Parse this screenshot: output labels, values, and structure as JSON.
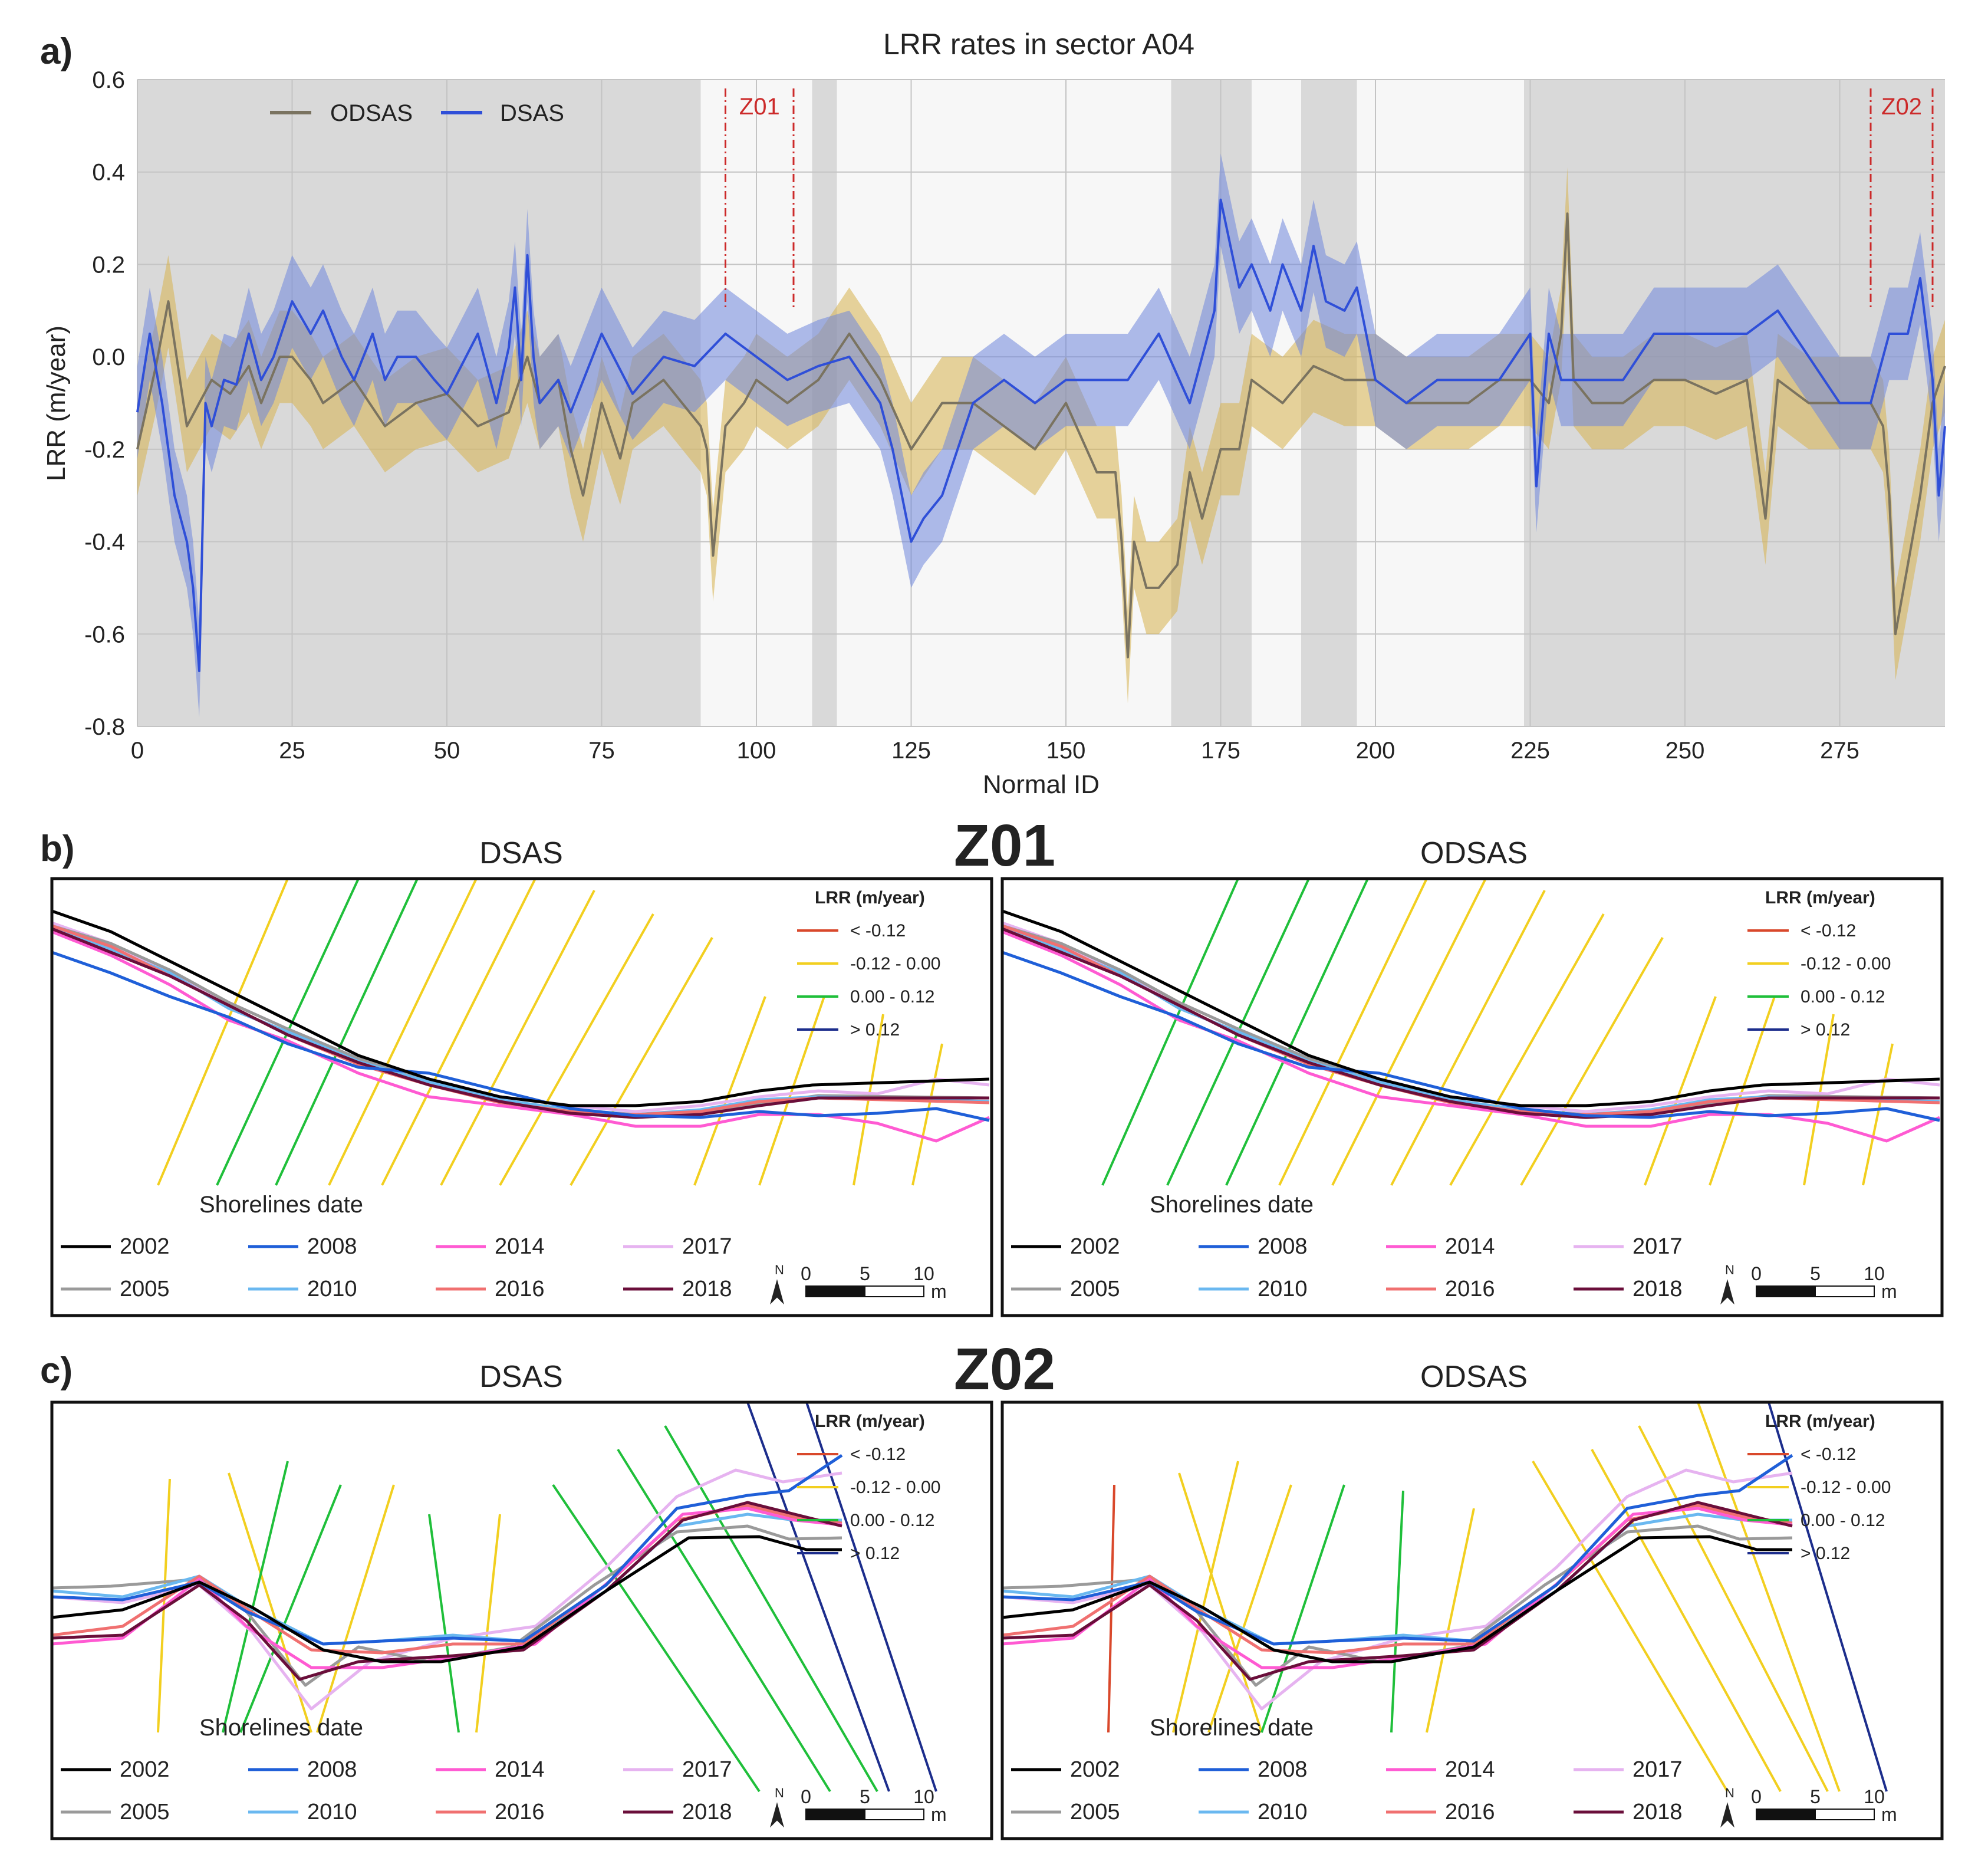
{
  "panel_a": {
    "label": "a)",
    "chart_data": {
      "type": "line",
      "title": "LRR rates in sector A04",
      "xlabel": "Normal ID",
      "ylabel": "LRR (m/year)",
      "xlim": [
        0,
        292
      ],
      "ylim": [
        -0.8,
        0.6
      ],
      "x_ticks": [
        0,
        25,
        50,
        75,
        100,
        125,
        150,
        175,
        200,
        225,
        250,
        275
      ],
      "y_ticks": [
        -0.8,
        -0.6,
        -0.4,
        -0.2,
        0.0,
        0.2,
        0.4,
        0.6
      ],
      "x_tick_labels": [
        "0",
        "25",
        "50",
        "75",
        "100",
        "125",
        "150",
        "175",
        "200",
        "225",
        "250",
        "275"
      ],
      "y_tick_labels": [
        "-0.8",
        "-0.6",
        "-0.4",
        "-0.2",
        "0.0",
        "0.2",
        "0.4",
        "0.6"
      ],
      "legend": [
        "ODSAS",
        "DSAS"
      ],
      "legend_position": "top-left",
      "shaded_regions": [
        [
          0,
          91
        ],
        [
          109,
          113
        ],
        [
          167,
          180
        ],
        [
          188,
          197
        ],
        [
          224,
          292
        ]
      ],
      "zones": [
        {
          "name": "Z01",
          "x_start": 95,
          "x_end": 106
        },
        {
          "name": "Z02",
          "x_start": 280,
          "x_end": 290
        }
      ],
      "series": [
        {
          "name": "ODSAS",
          "color": "#7a7360",
          "band_color": "#d7b24f",
          "band_halfwidth": 0.1,
          "x": [
            0,
            3,
            5,
            8,
            10,
            12,
            15,
            18,
            20,
            23,
            25,
            28,
            30,
            35,
            40,
            45,
            50,
            55,
            60,
            63,
            65,
            68,
            70,
            72,
            75,
            78,
            80,
            85,
            88,
            91,
            92,
            93,
            95,
            98,
            100,
            105,
            110,
            115,
            120,
            125,
            130,
            135,
            140,
            145,
            150,
            155,
            158,
            159,
            160,
            161,
            163,
            165,
            168,
            170,
            172,
            175,
            178,
            180,
            185,
            190,
            195,
            200,
            205,
            210,
            215,
            220,
            225,
            228,
            230,
            231,
            232,
            235,
            240,
            245,
            250,
            255,
            260,
            263,
            265,
            270,
            275,
            280,
            282,
            283,
            284,
            286,
            288,
            290,
            292
          ],
          "y": [
            -0.2,
            -0.02,
            0.12,
            -0.15,
            -0.1,
            -0.05,
            -0.08,
            -0.02,
            -0.1,
            0.0,
            0.0,
            -0.05,
            -0.1,
            -0.05,
            -0.15,
            -0.1,
            -0.08,
            -0.15,
            -0.12,
            0.0,
            -0.1,
            -0.05,
            -0.2,
            -0.3,
            -0.1,
            -0.22,
            -0.1,
            -0.05,
            -0.1,
            -0.15,
            -0.2,
            -0.43,
            -0.15,
            -0.1,
            -0.05,
            -0.1,
            -0.05,
            0.05,
            -0.05,
            -0.2,
            -0.1,
            -0.1,
            -0.15,
            -0.2,
            -0.1,
            -0.25,
            -0.25,
            -0.4,
            -0.65,
            -0.4,
            -0.5,
            -0.5,
            -0.45,
            -0.25,
            -0.35,
            -0.2,
            -0.2,
            -0.05,
            -0.1,
            -0.02,
            -0.05,
            -0.05,
            -0.1,
            -0.1,
            -0.1,
            -0.05,
            -0.05,
            -0.1,
            0.05,
            0.31,
            -0.05,
            -0.1,
            -0.1,
            -0.05,
            -0.05,
            -0.08,
            -0.05,
            -0.35,
            -0.05,
            -0.1,
            -0.1,
            -0.1,
            -0.15,
            -0.3,
            -0.6,
            -0.45,
            -0.3,
            -0.1,
            -0.02
          ]
        },
        {
          "name": "DSAS",
          "color": "#2f4fd8",
          "band_color": "#6f86dd",
          "band_halfwidth": 0.1,
          "x": [
            0,
            2,
            4,
            6,
            8,
            9,
            10,
            11,
            12,
            14,
            16,
            18,
            20,
            22,
            25,
            28,
            30,
            33,
            35,
            38,
            40,
            42,
            45,
            48,
            50,
            55,
            58,
            60,
            61,
            62,
            63,
            64,
            65,
            68,
            70,
            75,
            80,
            85,
            90,
            95,
            100,
            105,
            110,
            115,
            120,
            122,
            125,
            127,
            130,
            135,
            140,
            145,
            150,
            155,
            160,
            165,
            170,
            172,
            174,
            175,
            178,
            180,
            183,
            185,
            188,
            190,
            192,
            195,
            197,
            200,
            205,
            210,
            215,
            220,
            225,
            226,
            228,
            230,
            235,
            240,
            245,
            250,
            255,
            260,
            265,
            270,
            275,
            280,
            283,
            286,
            288,
            290,
            291,
            292
          ],
          "y": [
            -0.12,
            0.05,
            -0.1,
            -0.3,
            -0.4,
            -0.5,
            -0.68,
            -0.1,
            -0.15,
            -0.05,
            -0.06,
            0.05,
            -0.05,
            0.0,
            0.12,
            0.05,
            0.1,
            0.0,
            -0.05,
            0.05,
            -0.05,
            0.0,
            0.0,
            -0.05,
            -0.08,
            0.05,
            -0.1,
            0.02,
            0.15,
            -0.05,
            0.22,
            0.0,
            -0.1,
            -0.05,
            -0.12,
            0.05,
            -0.08,
            0.0,
            -0.02,
            0.05,
            0.0,
            -0.05,
            -0.02,
            0.0,
            -0.1,
            -0.2,
            -0.4,
            -0.35,
            -0.3,
            -0.1,
            -0.05,
            -0.1,
            -0.05,
            -0.05,
            -0.05,
            0.05,
            -0.1,
            0.0,
            0.1,
            0.34,
            0.15,
            0.2,
            0.1,
            0.2,
            0.1,
            0.24,
            0.12,
            0.1,
            0.15,
            -0.05,
            -0.1,
            -0.05,
            -0.05,
            -0.05,
            0.05,
            -0.28,
            0.05,
            -0.05,
            -0.05,
            -0.05,
            0.05,
            0.05,
            0.05,
            0.05,
            0.1,
            0.0,
            -0.1,
            -0.1,
            0.05,
            0.05,
            0.17,
            -0.05,
            -0.3,
            -0.15
          ]
        }
      ]
    }
  },
  "panel_b": {
    "label": "b)",
    "zone_title": "Z01",
    "maps": [
      {
        "title": "DSAS",
        "key": "b-dsas"
      },
      {
        "title": "ODSAS",
        "key": "b-odsas"
      }
    ]
  },
  "panel_c": {
    "label": "c)",
    "zone_title": "Z02",
    "maps": [
      {
        "title": "DSAS",
        "key": "c-dsas"
      },
      {
        "title": "ODSAS",
        "key": "c-odsas"
      }
    ]
  },
  "map_legend": {
    "title": "LRR (m/year)",
    "classes": [
      {
        "label": "< -0.12",
        "color": "#d9482b"
      },
      {
        "label": "-0.12 - 0.00",
        "color": "#f2cf1f"
      },
      {
        "label": "0.00 - 0.12",
        "color": "#1fbf3a"
      },
      {
        "label": "> 0.12",
        "color": "#1c2d8c"
      }
    ]
  },
  "shorelines": {
    "title": "Shorelines date",
    "items": [
      {
        "year": "2002",
        "color": "#000000"
      },
      {
        "year": "2008",
        "color": "#1f5fd8"
      },
      {
        "year": "2014",
        "color": "#ff5ad2"
      },
      {
        "year": "2017",
        "color": "#e6b3f0"
      },
      {
        "year": "2005",
        "color": "#9a9a9a"
      },
      {
        "year": "2010",
        "color": "#6ab8f0"
      },
      {
        "year": "2016",
        "color": "#f07070"
      },
      {
        "year": "2018",
        "color": "#6a0e3a"
      }
    ]
  },
  "scalebar": {
    "north": "N",
    "labels": [
      "0",
      "5",
      "10"
    ],
    "unit": "m"
  }
}
